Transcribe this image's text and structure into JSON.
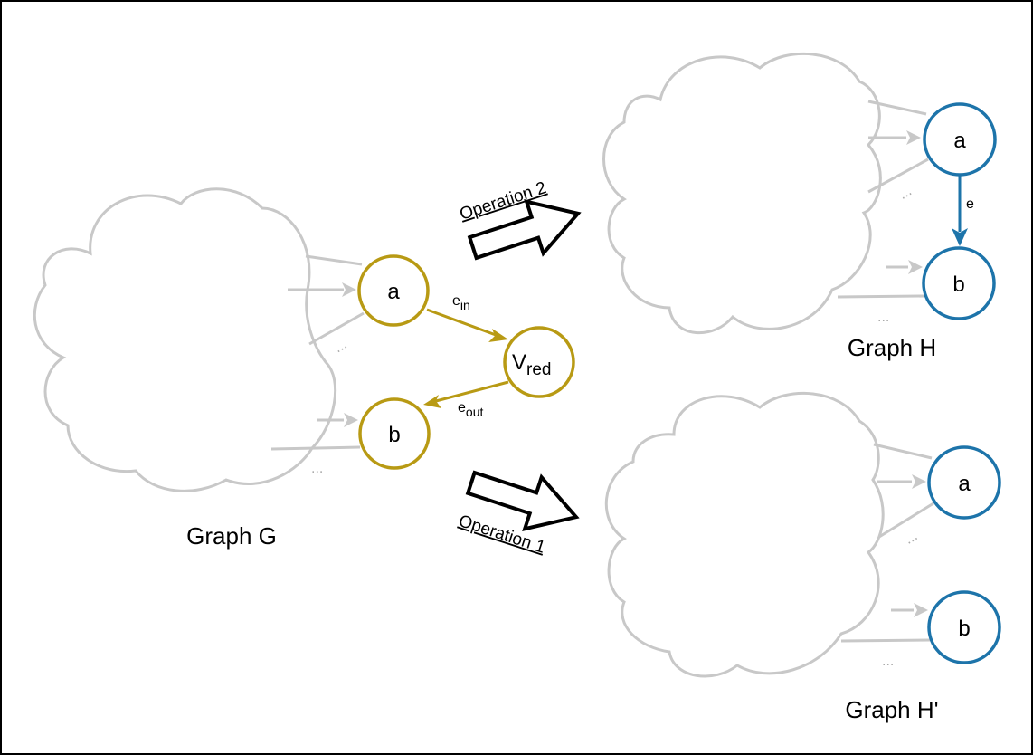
{
  "graphs": {
    "g": {
      "label": "Graph G",
      "node_a": "a",
      "node_b": "b",
      "node_v_main": "V",
      "node_v_sub": "red",
      "edge_in_main": "e",
      "edge_in_sub": "in",
      "edge_out_main": "e",
      "edge_out_sub": "out",
      "dots": "..."
    },
    "h": {
      "label": "Graph H",
      "node_a": "a",
      "node_b": "b",
      "edge": "e",
      "dots": "..."
    },
    "h_prime": {
      "label": "Graph H'",
      "node_a": "a",
      "node_b": "b",
      "dots": "..."
    }
  },
  "operations": {
    "op2": "Operation 2",
    "op1": "Operation 1"
  },
  "colors": {
    "gold": "#b89a14",
    "blue": "#1d74aa",
    "gray": "#c8c8c8"
  }
}
